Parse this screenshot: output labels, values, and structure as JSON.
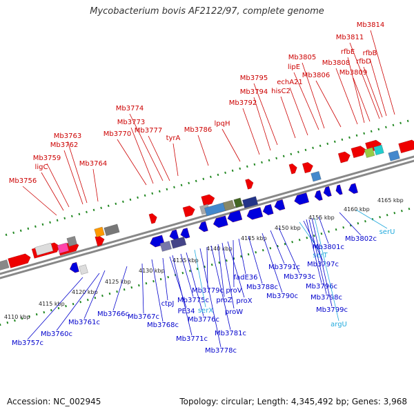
{
  "title": "Mycobacterium bovis AF2122/97, complete genome",
  "footer": {
    "accession": "Accession: NC_002945",
    "stats": "Topology: circular; Length: 4,345,492 bp; Genes: 3,968"
  },
  "colors": {
    "forward_label": "#cc0000",
    "reverse_label": "#0000cc",
    "rna_label": "#22aadd",
    "forward_gene": "#ee0000",
    "reverse_gene": "#0000dd",
    "backbone": "#888888",
    "scale_dots": "#228822"
  },
  "ticks": [
    "4110 kbp",
    "4115 kbp",
    "4120 kbp",
    "4125 kbp",
    "4130 kbp",
    "4135 kbp",
    "4140 kbp",
    "4145 kbp",
    "4150 kbp",
    "4155 kbp",
    "4160 kbp",
    "4165 kbp"
  ],
  "top_labels": [
    "Mb3756",
    "ligC",
    "Mb3759",
    "Mb3762",
    "Mb3763",
    "Mb3764",
    "Mb3770",
    "Mb3773",
    "Mb3774",
    "Mb3777",
    "tyrA",
    "Mb3786",
    "lpqH",
    "Mb3792",
    "Mb3794",
    "Mb3795",
    "hisC2",
    "echA21",
    "lipE",
    "Mb3805",
    "Mb3806",
    "Mb3808",
    "rfbE",
    "Mb3811",
    "Mb3809",
    "rfbD",
    "rfbB",
    "Mb3814"
  ],
  "bottom_labels": [
    "Mb3757c",
    "Mb3760c",
    "Mb3761c",
    "Mb3766c",
    "Mb3767c",
    "Mb3768c",
    "ctpJ",
    "PE34",
    "Mb3771c",
    "Mb3775c",
    "Mb3776c",
    "serX",
    "Mb3778c",
    "Mb3779c",
    "Mb3781c",
    "proZ",
    "proW",
    "proX",
    "proV",
    "fadE36",
    "Mb3788c",
    "Mb3790c",
    "Mb3791c",
    "Mb3793c",
    "serT",
    "Mb3797c",
    "Mb3796c",
    "Mb3798c",
    "Mb3799c",
    "argU",
    "Mb3801c",
    "Mb3802c",
    "serU"
  ]
}
